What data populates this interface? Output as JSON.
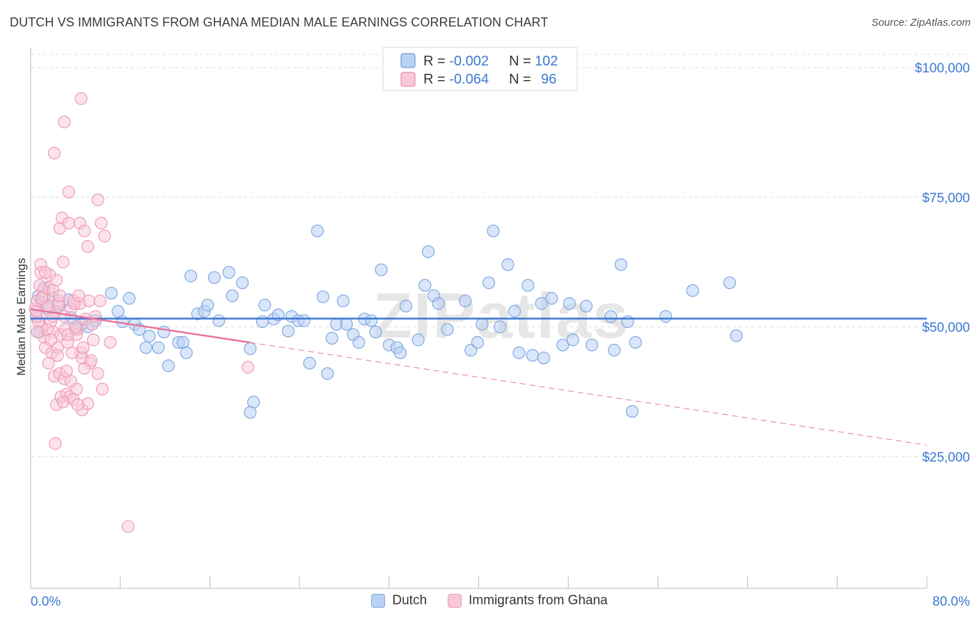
{
  "header": {
    "title": "DUTCH VS IMMIGRANTS FROM GHANA MEDIAN MALE EARNINGS CORRELATION CHART",
    "source": "Source: ZipAtlas.com"
  },
  "colors": {
    "dutch_fill": "#b9d2f4",
    "dutch_stroke": "#7fa8e0",
    "dutch_line": "#3b78d4",
    "ghana_fill": "#f9c8d8",
    "ghana_stroke": "#ee9bb6",
    "ghana_line": "#e8739a",
    "tick_label": "#3b78d4",
    "grid": "#dddddd"
  },
  "legend_box": {
    "rows": [
      {
        "r_label": "R = ",
        "r_value": "-0.002",
        "n_label": "N = ",
        "n_value": "102"
      },
      {
        "r_label": "R = ",
        "r_value": "-0.064",
        "n_label": "N = ",
        "n_value": "96"
      }
    ]
  },
  "bottom_legend": {
    "dutch": "Dutch",
    "ghana": "Immigrants from Ghana"
  },
  "watermark": "ZIPatlas",
  "chart_data": {
    "type": "scatter",
    "xlabel": "",
    "ylabel": "Median Male Earnings",
    "xlim": [
      0,
      80
    ],
    "ylim": [
      0,
      105000
    ],
    "x_tick_labels": [
      "0.0%",
      "80.0%"
    ],
    "y_ticks": [
      25000,
      50000,
      75000,
      100000
    ],
    "y_tick_labels": [
      "$25,000",
      "$50,000",
      "$75,000",
      "$100,000"
    ],
    "grid": "horizontal dashed",
    "series": [
      {
        "name": "Dutch",
        "trend": {
          "x": [
            0,
            80
          ],
          "y": [
            51600,
            51600
          ],
          "style": "solid"
        },
        "points": [
          [
            0.7,
            56000
          ],
          [
            1.0,
            54500
          ],
          [
            0.5,
            52000
          ],
          [
            1.2,
            57500
          ],
          [
            0.8,
            49000
          ],
          [
            1.5,
            53500
          ],
          [
            2.0,
            55500
          ],
          [
            2.5,
            54000
          ],
          [
            3.4,
            55200
          ],
          [
            3.6,
            51800
          ],
          [
            4.0,
            49500
          ],
          [
            4.6,
            50500
          ],
          [
            5.1,
            50000
          ],
          [
            5.8,
            51200
          ],
          [
            7.2,
            56500
          ],
          [
            7.8,
            53000
          ],
          [
            8.2,
            51000
          ],
          [
            8.8,
            55500
          ],
          [
            9.3,
            50500
          ],
          [
            9.7,
            49500
          ],
          [
            10.3,
            46000
          ],
          [
            10.6,
            48200
          ],
          [
            11.4,
            46000
          ],
          [
            11.9,
            49000
          ],
          [
            12.3,
            42500
          ],
          [
            13.2,
            47000
          ],
          [
            13.6,
            47000
          ],
          [
            13.9,
            45000
          ],
          [
            14.3,
            59800
          ],
          [
            14.9,
            52500
          ],
          [
            15.5,
            53000
          ],
          [
            15.8,
            54200
          ],
          [
            16.4,
            59500
          ],
          [
            16.8,
            51200
          ],
          [
            17.7,
            60500
          ],
          [
            18.0,
            56000
          ],
          [
            18.9,
            58500
          ],
          [
            19.6,
            45800
          ],
          [
            19.9,
            35500
          ],
          [
            19.6,
            33500
          ],
          [
            20.7,
            51000
          ],
          [
            20.9,
            54200
          ],
          [
            21.7,
            51500
          ],
          [
            22.1,
            52300
          ],
          [
            23.0,
            49200
          ],
          [
            23.3,
            52000
          ],
          [
            23.9,
            51200
          ],
          [
            24.4,
            51200
          ],
          [
            24.9,
            43000
          ],
          [
            25.6,
            68500
          ],
          [
            26.1,
            55800
          ],
          [
            26.5,
            41000
          ],
          [
            26.9,
            47800
          ],
          [
            27.3,
            50500
          ],
          [
            27.9,
            55000
          ],
          [
            28.2,
            50500
          ],
          [
            28.8,
            48500
          ],
          [
            29.3,
            47000
          ],
          [
            29.8,
            51500
          ],
          [
            30.4,
            51200
          ],
          [
            30.8,
            49000
          ],
          [
            31.3,
            61000
          ],
          [
            32.0,
            46500
          ],
          [
            32.7,
            46000
          ],
          [
            33.0,
            45000
          ],
          [
            33.5,
            54000
          ],
          [
            34.6,
            47500
          ],
          [
            35.2,
            58000
          ],
          [
            35.5,
            64500
          ],
          [
            36.0,
            56000
          ],
          [
            36.4,
            54500
          ],
          [
            37.2,
            49500
          ],
          [
            38.8,
            55000
          ],
          [
            39.3,
            45500
          ],
          [
            39.9,
            47000
          ],
          [
            40.3,
            50500
          ],
          [
            40.9,
            58500
          ],
          [
            41.3,
            68500
          ],
          [
            41.9,
            50000
          ],
          [
            42.6,
            62000
          ],
          [
            43.2,
            53000
          ],
          [
            43.6,
            45000
          ],
          [
            44.4,
            58000
          ],
          [
            44.8,
            44500
          ],
          [
            45.8,
            44000
          ],
          [
            45.6,
            54500
          ],
          [
            46.5,
            55500
          ],
          [
            47.5,
            46500
          ],
          [
            48.1,
            54500
          ],
          [
            48.4,
            47500
          ],
          [
            49.6,
            54000
          ],
          [
            50.1,
            46500
          ],
          [
            51.8,
            52000
          ],
          [
            52.1,
            45500
          ],
          [
            52.7,
            62000
          ],
          [
            53.3,
            51000
          ],
          [
            54.0,
            47000
          ],
          [
            56.7,
            52000
          ],
          [
            59.1,
            57000
          ],
          [
            62.4,
            58500
          ],
          [
            63.0,
            48300
          ],
          [
            53.7,
            33700
          ]
        ]
      },
      {
        "name": "Immigrants from Ghana",
        "trend": {
          "x": [
            0,
            80
          ],
          "y": [
            53400,
            27200
          ],
          "solid_until_x": 19.6,
          "style": "solid then dashed"
        },
        "points": [
          [
            0.4,
            53500
          ],
          [
            0.6,
            55000
          ],
          [
            0.8,
            52000
          ],
          [
            1.0,
            50000
          ],
          [
            1.2,
            56000
          ],
          [
            1.4,
            54000
          ],
          [
            1.6,
            57500
          ],
          [
            1.8,
            51000
          ],
          [
            2.0,
            49000
          ],
          [
            2.2,
            53000
          ],
          [
            2.5,
            55000
          ],
          [
            0.9,
            60500
          ],
          [
            1.7,
            60000
          ],
          [
            2.3,
            59000
          ],
          [
            2.9,
            62500
          ],
          [
            1.3,
            46000
          ],
          [
            1.6,
            43000
          ],
          [
            1.9,
            45000
          ],
          [
            2.4,
            46000
          ],
          [
            2.7,
            48500
          ],
          [
            3.1,
            49500
          ],
          [
            3.3,
            47000
          ],
          [
            2.1,
            40500
          ],
          [
            2.6,
            41000
          ],
          [
            3.0,
            40000
          ],
          [
            2.3,
            35000
          ],
          [
            2.7,
            36500
          ],
          [
            3.2,
            37000
          ],
          [
            2.2,
            27500
          ],
          [
            3.5,
            36500
          ],
          [
            4.1,
            38000
          ],
          [
            4.6,
            34000
          ],
          [
            5.1,
            35200
          ],
          [
            3.8,
            36000
          ],
          [
            2.6,
            69000
          ],
          [
            2.8,
            71000
          ],
          [
            3.4,
            70000
          ],
          [
            4.4,
            70000
          ],
          [
            4.8,
            68500
          ],
          [
            5.1,
            65500
          ],
          [
            6.0,
            74500
          ],
          [
            6.3,
            70000
          ],
          [
            6.6,
            67500
          ],
          [
            3.4,
            76000
          ],
          [
            2.1,
            83500
          ],
          [
            3.0,
            89500
          ],
          [
            4.5,
            94000
          ],
          [
            4.4,
            54500
          ],
          [
            4.9,
            51500
          ],
          [
            5.5,
            50500
          ],
          [
            5.3,
            43000
          ],
          [
            6.0,
            41000
          ],
          [
            6.4,
            38000
          ],
          [
            7.1,
            47000
          ],
          [
            3.6,
            53500
          ],
          [
            3.8,
            55000
          ],
          [
            4.2,
            49500
          ],
          [
            4.5,
            45000
          ],
          [
            1.2,
            48000
          ],
          [
            0.7,
            51000
          ],
          [
            0.5,
            53000
          ],
          [
            1.1,
            57000
          ],
          [
            1.5,
            49500
          ],
          [
            2.0,
            52000
          ],
          [
            3.9,
            54500
          ],
          [
            4.1,
            48500
          ],
          [
            4.8,
            42000
          ],
          [
            5.8,
            52000
          ],
          [
            3.2,
            41500
          ],
          [
            3.6,
            39500
          ],
          [
            2.4,
            44500
          ],
          [
            1.8,
            47500
          ],
          [
            4.6,
            44000
          ],
          [
            4.3,
            56000
          ],
          [
            4.0,
            50000
          ],
          [
            3.7,
            45000
          ],
          [
            2.9,
            35500
          ],
          [
            4.2,
            35000
          ],
          [
            5.6,
            47500
          ],
          [
            19.4,
            42200
          ],
          [
            8.7,
            11500
          ],
          [
            0.8,
            58000
          ],
          [
            1.6,
            54000
          ],
          [
            2.5,
            54500
          ],
          [
            3.0,
            52000
          ],
          [
            1.0,
            55500
          ],
          [
            0.6,
            49000
          ],
          [
            2.0,
            57000
          ],
          [
            5.2,
            55000
          ],
          [
            3.3,
            48500
          ],
          [
            4.7,
            46000
          ],
          [
            5.4,
            43500
          ],
          [
            6.2,
            55000
          ],
          [
            0.9,
            62000
          ],
          [
            1.3,
            60500
          ],
          [
            2.6,
            56000
          ]
        ]
      }
    ]
  }
}
